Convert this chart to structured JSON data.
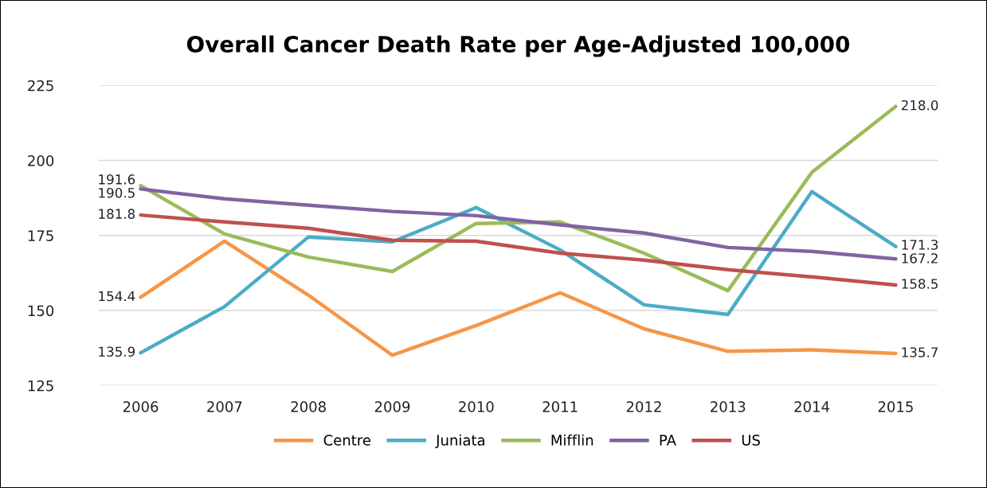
{
  "chart_data": {
    "type": "line",
    "title": "Overall Cancer Death Rate per Age-Adjusted 100,000",
    "categories": [
      "2006",
      "2007",
      "2008",
      "2009",
      "2010",
      "2011",
      "2012",
      "2013",
      "2014",
      "2015"
    ],
    "series": [
      {
        "name": "Centre",
        "color": "#f79646",
        "values": [
          154.4,
          173.1,
          155.1,
          135.1,
          145.0,
          155.9,
          143.9,
          136.4,
          136.9,
          135.7
        ],
        "value_labels": [
          "154.4",
          null,
          null,
          null,
          null,
          null,
          null,
          null,
          null,
          "135.7"
        ]
      },
      {
        "name": "Juniata",
        "color": "#4bacc6",
        "values": [
          135.9,
          151.3,
          174.5,
          172.9,
          184.3,
          170.2,
          151.9,
          148.7,
          189.6,
          171.3
        ],
        "value_labels": [
          "135.9",
          null,
          null,
          null,
          null,
          null,
          null,
          null,
          null,
          "171.3"
        ]
      },
      {
        "name": "Mifflin",
        "color": "#9bbb59",
        "values": [
          191.6,
          175.5,
          167.8,
          163.0,
          179.0,
          179.5,
          169.1,
          156.6,
          196.0,
          218.0
        ],
        "value_labels": [
          "191.6",
          null,
          null,
          null,
          null,
          null,
          null,
          null,
          null,
          "218.0"
        ]
      },
      {
        "name": "PA",
        "color": "#8064a2",
        "values": [
          190.5,
          187.2,
          185.1,
          183.0,
          181.6,
          178.5,
          175.8,
          171.0,
          169.7,
          167.2
        ],
        "value_labels": [
          "190.5",
          null,
          null,
          null,
          null,
          null,
          null,
          null,
          null,
          "167.2"
        ]
      },
      {
        "name": "US",
        "color": "#c0504d",
        "values": [
          181.8,
          179.5,
          177.4,
          173.4,
          173.1,
          169.1,
          166.8,
          163.6,
          161.2,
          158.5
        ],
        "value_labels": [
          "181.8",
          null,
          null,
          null,
          null,
          null,
          null,
          null,
          null,
          "158.5"
        ]
      }
    ],
    "ylim": [
      125,
      225
    ],
    "yticks": [
      125,
      150,
      175,
      200,
      225
    ],
    "grid": "y",
    "legend": "bottom",
    "marker": "none",
    "line_style": "solid"
  }
}
